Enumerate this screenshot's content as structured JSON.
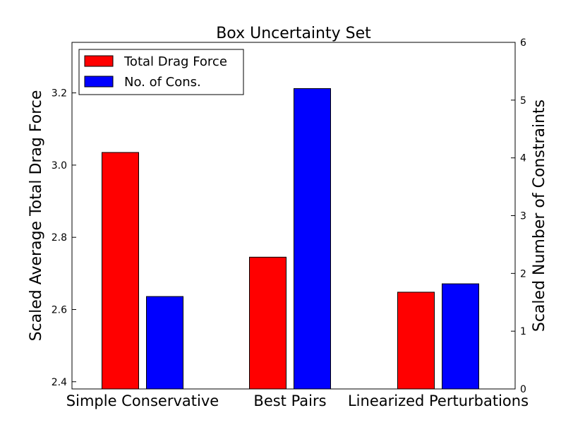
{
  "chart_data": {
    "type": "bar",
    "title": "Box Uncertainty Set",
    "categories": [
      "Simple Conservative",
      "Best Pairs",
      "Linearized Perturbations"
    ],
    "left_axis": {
      "label": "Scaled Average Total Drag Force",
      "lim": [
        2.38,
        3.34
      ],
      "ticks": [
        2.4,
        2.6,
        2.8,
        3.0,
        3.2
      ],
      "tick_labels": [
        "2.4",
        "2.6",
        "2.8",
        "3.0",
        "3.2"
      ]
    },
    "right_axis": {
      "label": "Scaled Number of Constraints",
      "lim": [
        0,
        6
      ],
      "ticks": [
        0,
        1,
        2,
        3,
        4,
        5,
        6
      ],
      "tick_labels": [
        "0",
        "1",
        "2",
        "3",
        "4",
        "5",
        "6"
      ]
    },
    "series": [
      {
        "name": "Total Drag Force",
        "axis": "left",
        "color": "#ff0000",
        "values": [
          3.035,
          2.745,
          2.648
        ]
      },
      {
        "name": "No. of Cons.",
        "axis": "right",
        "color": "#0000ff",
        "values": [
          1.6,
          5.2,
          1.82
        ]
      }
    ],
    "legend": {
      "placement": "top-left",
      "entries": [
        "Total Drag Force",
        "No. of Cons."
      ]
    },
    "grid": false
  }
}
